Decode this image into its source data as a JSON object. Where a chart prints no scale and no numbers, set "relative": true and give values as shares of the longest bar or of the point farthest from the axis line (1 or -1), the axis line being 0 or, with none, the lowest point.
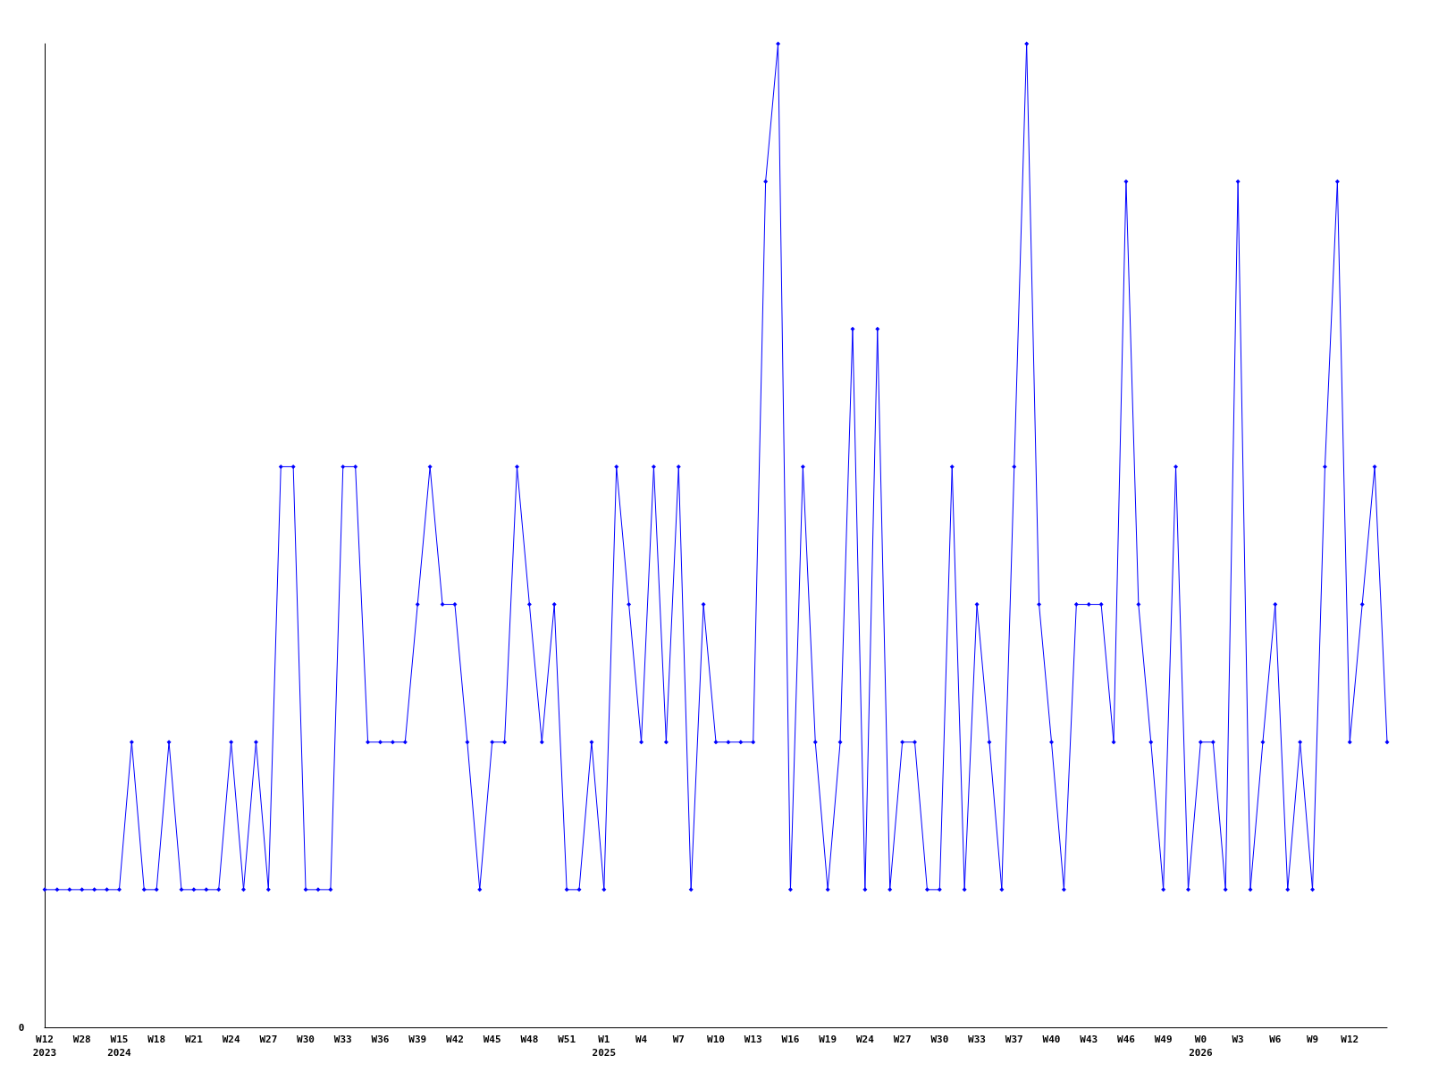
{
  "chart_data": {
    "type": "line",
    "relative": true,
    "color": "#0000ff",
    "marker": "diamond",
    "categories": [
      "W12\n2023",
      null,
      null,
      "W28",
      null,
      null,
      "W15\n2024",
      null,
      null,
      "W18",
      null,
      null,
      "W21",
      null,
      null,
      "W24",
      null,
      null,
      "W27",
      null,
      null,
      "W30",
      null,
      null,
      "W33",
      null,
      null,
      "W36",
      null,
      null,
      "W39",
      null,
      null,
      "W42",
      null,
      null,
      "W45",
      null,
      null,
      "W48",
      null,
      null,
      "W51",
      null,
      null,
      "W1\n2025",
      null,
      null,
      "W4",
      null,
      null,
      "W7",
      null,
      null,
      "W10",
      null,
      null,
      "W13",
      null,
      null,
      "W16",
      null,
      null,
      "W19",
      null,
      null,
      "W24",
      null,
      null,
      "W27",
      null,
      null,
      "W30",
      null,
      null,
      "W33",
      null,
      null,
      "W37",
      null,
      null,
      "W40",
      null,
      null,
      "W43",
      null,
      null,
      "W46",
      null,
      null,
      "W49",
      null,
      null,
      "W0\n2026",
      null,
      null,
      "W3",
      null,
      null,
      "W6",
      null,
      null,
      "W9",
      null,
      null,
      "W12",
      null,
      null,
      null
    ],
    "values": [
      0.14,
      0.14,
      0.14,
      0.14,
      0.14,
      0.14,
      0.14,
      0.29,
      0.14,
      0.14,
      0.29,
      0.14,
      0.14,
      0.14,
      0.14,
      0.29,
      0.14,
      0.29,
      0.14,
      0.57,
      0.57,
      0.14,
      0.14,
      0.14,
      0.57,
      0.57,
      0.29,
      0.29,
      0.29,
      0.29,
      0.43,
      0.57,
      0.43,
      0.43,
      0.29,
      0.14,
      0.29,
      0.29,
      0.57,
      0.43,
      0.29,
      0.43,
      0.14,
      0.14,
      0.29,
      0.14,
      0.57,
      0.43,
      0.29,
      0.57,
      0.29,
      0.57,
      0.14,
      0.43,
      0.29,
      0.29,
      0.29,
      0.29,
      0.86,
      1,
      0.14,
      0.57,
      0.29,
      0.14,
      0.29,
      0.71,
      0.14,
      0.71,
      0.14,
      0.29,
      0.29,
      0.14,
      0.14,
      0.57,
      0.14,
      0.43,
      0.29,
      0.14,
      0.57,
      1,
      0.43,
      0.29,
      0.14,
      0.43,
      0.43,
      0.43,
      0.29,
      0.86,
      0.43,
      0.29,
      0.14,
      0.57,
      0.14,
      0.29,
      0.29,
      0.14,
      0.86,
      0.14,
      0.29,
      0.43,
      0.14,
      0.29,
      0.14,
      0.57,
      0.86,
      0.29,
      0.43,
      0.57,
      0.29
    ],
    "annotations": [
      "0"
    ]
  }
}
